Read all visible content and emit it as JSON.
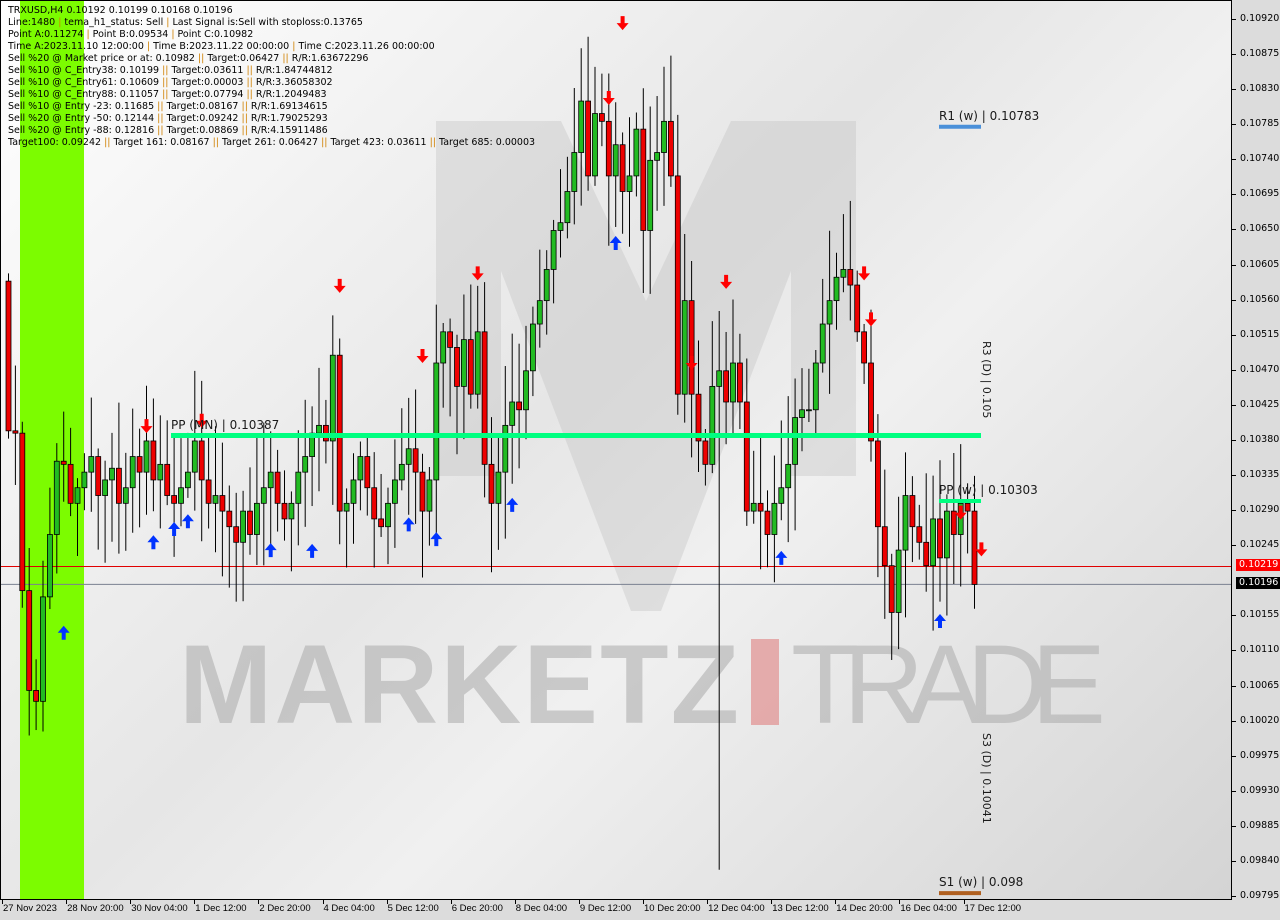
{
  "info": {
    "symbol_line": "TRXUSD,H4  0.10192 0.10199 0.10168 0.10196",
    "lines": [
      "Line:1480 | tema_h1_status: Sell | Last Signal is:Sell with stoploss:0.13765",
      "Point A:0.11274 | Point B:0.09534 | Point C:0.10982",
      "Time A:2023.11.10 12:00:00 | Time B:2023.11.22 00:00:00 | Time C:2023.11.26 00:00:00",
      "Sell %20 @ Market price or at: 0.10982 || Target:0.06427 || R/R:1.63672296",
      "Sell %10 @ C_Entry38: 0.10199 || Target:0.03611 || R/R:1.84744812",
      "Sell %10 @ C_Entry61: 0.10609 || Target:0.00003 || R/R:3.36058302",
      "Sell %10 @ C_Entry88: 0.11057 || Target:0.07794 || R/R:1.2049483",
      "Sell %10 @ Entry -23: 0.11685 || Target:0.08167 || R/R:1.69134615",
      "Sell %20 @ Entry -50: 0.12144 || Target:0.09242 || R/R:1.79025293",
      "Sell %20 @ Entry -88: 0.12816 || Target:0.08869 || R/R:4.15911486",
      "Target100: 0.09242 || Target 161: 0.08167 || Target 261: 0.06427 || Target 423: 0.03611 || Target 685: 0.00003"
    ]
  },
  "levels": {
    "pp_mn": {
      "label": "PP (MN) | 0.10387",
      "price": 0.10387,
      "color": "#00ff80"
    },
    "r1_w": {
      "label": "R1 (w) | 0.10783",
      "price": 0.10783,
      "color": "#4a90d9"
    },
    "pp_w": {
      "label": "PP (w) | 0.10303",
      "price": 0.10303,
      "color": "#00ff80"
    },
    "s1_w": {
      "label": "S1 (w) | 0.098",
      "price": 0.098,
      "color": "#b06020"
    },
    "daily_top": "R3 (D) | 0.105",
    "daily_bottom": "S3 (D) | 0.10041"
  },
  "price_axis": {
    "ticks": [
      "0.10920",
      "0.10875",
      "0.10830",
      "0.10785",
      "0.10740",
      "0.10695",
      "0.10650",
      "0.10605",
      "0.10560",
      "0.10515",
      "0.10470",
      "0.10425",
      "0.10380",
      "0.10335",
      "0.10290",
      "0.10245",
      "0.10155",
      "0.10110",
      "0.10065",
      "0.10020",
      "0.09975",
      "0.09930",
      "0.09885",
      "0.09840",
      "0.09795"
    ],
    "range": [
      0.09795,
      0.1092
    ],
    "ask": {
      "label": "0.10219",
      "price": 0.10219,
      "color": "#ff0000"
    },
    "bid": {
      "label": "0.10196",
      "price": 0.10196,
      "color": "#000000"
    }
  },
  "time_axis": {
    "ticks": [
      "27 Nov 2023",
      "28 Nov 20:00",
      "30 Nov 04:00",
      "1 Dec 12:00",
      "2 Dec 20:00",
      "4 Dec 04:00",
      "5 Dec 12:00",
      "6 Dec 20:00",
      "8 Dec 04:00",
      "9 Dec 12:00",
      "10 Dec 20:00",
      "12 Dec 04:00",
      "13 Dec 12:00",
      "14 Dec 20:00",
      "16 Dec 04:00",
      "17 Dec 12:00"
    ]
  },
  "watermark": {
    "word1": "MARKETZ",
    "word2": "TRADE"
  },
  "colors": {
    "bull": "#22bb22",
    "bear": "#ee0000",
    "highlight_band": "#7cfc00",
    "up_arrow": "#0033ff",
    "down_arrow": "#ff0000"
  },
  "chart_data": {
    "type": "candlestick",
    "timeframe": "H4",
    "open_first": 0.10585,
    "closes": [
      0.10393,
      0.1039,
      0.10188,
      0.1006,
      0.10046,
      0.1018,
      0.1026,
      0.10354,
      0.1035,
      0.103,
      0.1032,
      0.1034,
      0.1036,
      0.1031,
      0.1033,
      0.10345,
      0.103,
      0.1032,
      0.1036,
      0.1034,
      0.1038,
      0.1033,
      0.1035,
      0.1031,
      0.103,
      0.1032,
      0.1034,
      0.1038,
      0.1033,
      0.103,
      0.1031,
      0.1029,
      0.1027,
      0.1025,
      0.1029,
      0.1026,
      0.103,
      0.1032,
      0.1034,
      0.103,
      0.1028,
      0.103,
      0.1034,
      0.1036,
      0.1039,
      0.104,
      0.1038,
      0.1049,
      0.1029,
      0.103,
      0.1033,
      0.1036,
      0.1032,
      0.1028,
      0.1027,
      0.103,
      0.1033,
      0.1035,
      0.1037,
      0.1034,
      0.1029,
      0.1033,
      0.1048,
      0.1052,
      0.105,
      0.1045,
      0.1051,
      0.1044,
      0.1052,
      0.1035,
      0.103,
      0.1034,
      0.104,
      0.1043,
      0.1042,
      0.1047,
      0.1053,
      0.1056,
      0.106,
      0.1065,
      0.1066,
      0.107,
      0.1075,
      0.10816,
      0.1072,
      0.108,
      0.1079,
      0.1072,
      0.1076,
      0.107,
      0.1072,
      0.1078,
      0.1065,
      0.1074,
      0.1075,
      0.1079,
      0.1072,
      0.1044,
      0.1056,
      0.1044,
      0.1038,
      0.1035,
      0.1045,
      0.1047,
      0.1043,
      0.1048,
      0.1043,
      0.1029,
      0.103,
      0.1029,
      0.1026,
      0.103,
      0.1032,
      0.1035,
      0.1041,
      0.1042,
      0.1042,
      0.1048,
      0.1053,
      0.1056,
      0.1059,
      0.106,
      0.1058,
      0.1052,
      0.1048,
      0.1038,
      0.1027,
      0.1022,
      0.1016,
      0.1024,
      0.1031,
      0.1027,
      0.1025,
      0.1022,
      0.1028,
      0.1023,
      0.1029,
      0.1026,
      0.103,
      0.1029,
      0.10196
    ],
    "signals": [
      {
        "dir": "down",
        "index": 20,
        "price": 0.10399
      },
      {
        "dir": "down",
        "index": 28,
        "price": 0.10406
      },
      {
        "dir": "down",
        "index": 48,
        "price": 0.10579
      },
      {
        "dir": "down",
        "index": 60,
        "price": 0.10489
      },
      {
        "dir": "down",
        "index": 68,
        "price": 0.10595
      },
      {
        "dir": "down",
        "index": 87,
        "price": 0.1082
      },
      {
        "dir": "down",
        "index": 89,
        "price": 0.10916
      },
      {
        "dir": "down",
        "index": 99,
        "price": 0.1048
      },
      {
        "dir": "down",
        "index": 104,
        "price": 0.10584
      },
      {
        "dir": "down",
        "index": 124,
        "price": 0.10595
      },
      {
        "dir": "down",
        "index": 125,
        "price": 0.10536
      },
      {
        "dir": "down",
        "index": 138,
        "price": 0.10288
      },
      {
        "dir": "down",
        "index": 141,
        "price": 0.10241
      },
      {
        "dir": "up",
        "index": 8,
        "price": 0.10134
      },
      {
        "dir": "up",
        "index": 21,
        "price": 0.1025
      },
      {
        "dir": "up",
        "index": 24,
        "price": 0.10267
      },
      {
        "dir": "up",
        "index": 26,
        "price": 0.10277
      },
      {
        "dir": "up",
        "index": 38,
        "price": 0.1024
      },
      {
        "dir": "up",
        "index": 44,
        "price": 0.10239
      },
      {
        "dir": "up",
        "index": 58,
        "price": 0.10273
      },
      {
        "dir": "up",
        "index": 62,
        "price": 0.10254
      },
      {
        "dir": "up",
        "index": 73,
        "price": 0.10298
      },
      {
        "dir": "up",
        "index": 88,
        "price": 0.10634
      },
      {
        "dir": "up",
        "index": 112,
        "price": 0.1023
      },
      {
        "dir": "up",
        "index": 135,
        "price": 0.10149
      }
    ]
  }
}
